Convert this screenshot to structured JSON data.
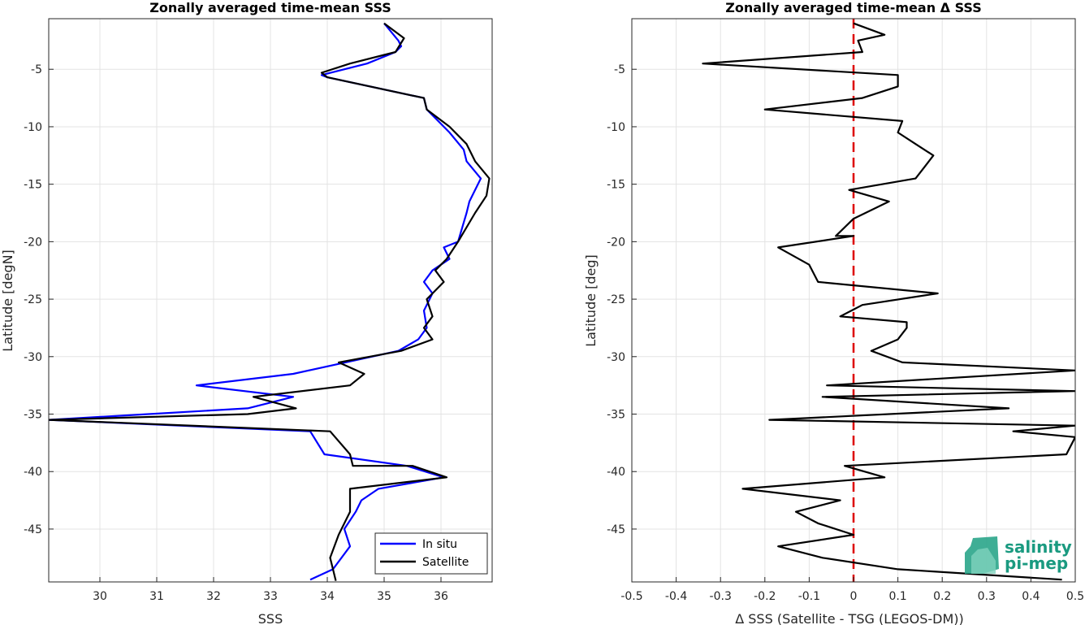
{
  "chart_data": [
    {
      "type": "line",
      "title": "Zonally averaged time-mean SSS",
      "xlabel": "SSS",
      "ylabel": "Latitude [degN]",
      "xlim": [
        29.1,
        36.9
      ],
      "ylim": [
        -49.6,
        -0.6
      ],
      "xticks": [
        30,
        31,
        32,
        33,
        34,
        35,
        36
      ],
      "yticks": [
        -45,
        -40,
        -35,
        -30,
        -25,
        -20,
        -15,
        -10,
        -5
      ],
      "grid": true,
      "legend_position": "bottom-right",
      "series": [
        {
          "name": "In situ",
          "color": "#0000ff",
          "x": [
            35.0,
            35.25,
            35.3,
            35.2,
            34.7,
            33.9,
            34.0,
            35.7,
            35.75,
            36.15,
            36.4,
            36.45,
            36.7,
            36.5,
            36.45,
            36.3,
            36.05,
            36.15,
            35.85,
            35.7,
            35.85,
            35.7,
            35.75,
            35.6,
            35.25,
            33.4,
            31.7,
            33.4,
            32.6,
            29.1,
            33.7,
            33.95,
            35.4,
            36.05,
            34.9,
            34.6,
            34.5,
            34.3,
            34.4,
            34.1,
            33.7
          ],
          "y": [
            -1.0,
            -2.5,
            -3.0,
            -3.5,
            -4.5,
            -5.5,
            -5.7,
            -7.5,
            -8.5,
            -10.5,
            -12.0,
            -13.0,
            -14.5,
            -16.5,
            -17.5,
            -20.0,
            -20.5,
            -21.5,
            -22.5,
            -23.5,
            -24.5,
            -26.0,
            -27.5,
            -28.5,
            -29.5,
            -31.5,
            -32.5,
            -33.5,
            -34.5,
            -35.5,
            -36.5,
            -38.5,
            -39.5,
            -40.5,
            -41.5,
            -42.5,
            -43.5,
            -45.0,
            -46.5,
            -48.5,
            -49.4
          ]
        },
        {
          "name": "Satellite",
          "color": "#000000",
          "x": [
            35.0,
            35.35,
            35.2,
            34.4,
            33.9,
            34.0,
            35.7,
            35.75,
            36.15,
            36.45,
            36.6,
            36.85,
            36.8,
            36.6,
            36.3,
            36.1,
            35.9,
            36.05,
            35.75,
            35.85,
            35.7,
            35.85,
            35.3,
            34.2,
            34.65,
            34.4,
            32.7,
            33.45,
            32.6,
            29.1,
            34.05,
            34.4,
            34.45,
            35.5,
            36.1,
            34.4,
            34.4,
            34.2,
            34.05,
            34.1,
            34.15
          ],
          "y": [
            -1.0,
            -2.3,
            -3.5,
            -4.5,
            -5.3,
            -5.7,
            -7.5,
            -8.5,
            -10.0,
            -11.5,
            -13.0,
            -14.5,
            -16.0,
            -17.5,
            -20.0,
            -21.5,
            -22.5,
            -23.5,
            -25.0,
            -26.5,
            -27.5,
            -28.5,
            -29.5,
            -30.5,
            -31.5,
            -32.5,
            -33.5,
            -34.5,
            -35.0,
            -35.5,
            -36.5,
            -38.5,
            -39.5,
            -39.5,
            -40.5,
            -41.5,
            -43.5,
            -45.5,
            -47.5,
            -48.5,
            -49.5
          ]
        }
      ]
    },
    {
      "type": "line",
      "title": "Zonally averaged time-mean Δ SSS",
      "xlabel": "Δ SSS (Satellite - TSG (LEGOS-DM))",
      "ylabel": "Latitude [deg]",
      "xlim": [
        -0.5,
        0.5
      ],
      "ylim": [
        -49.6,
        -0.6
      ],
      "xticks": [
        -0.5,
        -0.4,
        -0.3,
        -0.2,
        -0.1,
        0,
        0.1,
        0.2,
        0.3,
        0.4,
        0.5
      ],
      "xticklabels": [
        "-0.5",
        "-0.4",
        "-0.3",
        "-0.2",
        "-0.1",
        "0",
        "0.1",
        "0.2",
        "0.3",
        "0.4",
        "0.5"
      ],
      "yticks": [
        -45,
        -40,
        -35,
        -30,
        -25,
        -20,
        -15,
        -10,
        -5
      ],
      "grid": true,
      "reference_line": {
        "x": 0,
        "color": "#dd0000",
        "style": "dashed"
      },
      "series": [
        {
          "color": "#000000",
          "x": [
            0.0,
            0.07,
            0.01,
            0.02,
            -0.34,
            0.1,
            0.1,
            0.02,
            -0.2,
            0.11,
            0.1,
            0.14,
            0.18,
            0.16,
            0.14,
            -0.01,
            0.08,
            0.0,
            -0.04,
            0.0,
            -0.17,
            -0.1,
            -0.08,
            0.19,
            0.02,
            -0.03,
            0.12,
            0.12,
            0.1,
            0.04,
            0.11,
            0.5,
            -0.06,
            0.5,
            -0.07,
            0.35,
            -0.19,
            0.5,
            0.36,
            0.5,
            0.48,
            -0.02,
            0.07,
            -0.25,
            -0.03,
            -0.13,
            -0.08,
            0.0,
            -0.17,
            -0.07,
            0.1,
            0.47
          ],
          "y": [
            -1.0,
            -2.0,
            -2.5,
            -3.5,
            -4.5,
            -5.5,
            -6.5,
            -7.5,
            -8.5,
            -9.5,
            -10.5,
            -11.5,
            -12.5,
            -13.5,
            -14.5,
            -15.5,
            -16.5,
            -18.0,
            -19.5,
            -19.5,
            -20.5,
            -22.0,
            -23.5,
            -24.5,
            -25.5,
            -26.5,
            -27.0,
            -27.5,
            -28.5,
            -29.5,
            -30.5,
            -31.2,
            -32.5,
            -33.0,
            -33.5,
            -34.5,
            -35.5,
            -36.0,
            -36.5,
            -37.0,
            -38.5,
            -39.5,
            -40.5,
            -41.5,
            -42.5,
            -43.5,
            -44.5,
            -45.5,
            -46.5,
            -47.5,
            -48.5,
            -49.4
          ]
        }
      ]
    }
  ],
  "legend": {
    "items": [
      "In situ",
      "Satellite"
    ]
  },
  "logo": {
    "line1": "salinity",
    "line2": "pi-mep"
  }
}
